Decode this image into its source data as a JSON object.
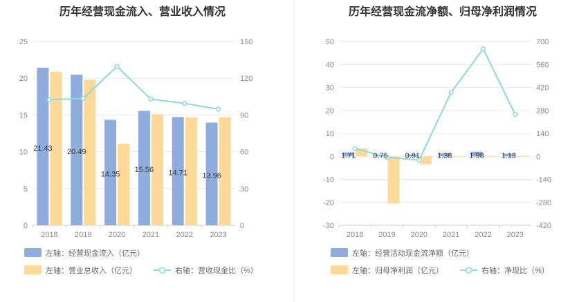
{
  "colors": {
    "left_bar": "#8eaddc",
    "right_bar": "#ffd998",
    "line": "#8dd8df",
    "grid": "#e8eaf0",
    "divider": "#eeeeee"
  },
  "chart_data": [
    {
      "type": "bar",
      "title": "历年经营现金流入、营业收入情况",
      "categories": [
        "2018",
        "2019",
        "2020",
        "2021",
        "2022",
        "2023"
      ],
      "y_left": {
        "min": 0,
        "max": 25,
        "ticks": [
          "0",
          "5",
          "10",
          "15",
          "20",
          "25"
        ]
      },
      "y_right": {
        "min": 0,
        "max": 150,
        "ticks": [
          "0",
          "30",
          "60",
          "90",
          "120",
          "150"
        ]
      },
      "series": [
        {
          "name": "左轴：经营现金流入（亿元）",
          "kind": "bar",
          "axis": "left",
          "values": [
            21.43,
            20.49,
            14.35,
            15.56,
            14.71,
            13.96
          ],
          "labels": [
            "21.43",
            "20.49",
            "14.35",
            "15.56",
            "14.71",
            "13.96"
          ]
        },
        {
          "name": "左轴：营业总收入（亿元）",
          "kind": "bar",
          "axis": "left",
          "values": [
            20.9,
            19.8,
            11.1,
            15.1,
            14.7,
            14.7
          ]
        },
        {
          "name": "右轴：营收现金比（%）",
          "kind": "line",
          "axis": "right",
          "values": [
            102.5,
            103.5,
            129.6,
            103.0,
            99.5,
            94.8
          ]
        }
      ],
      "legend_position": "bottom"
    },
    {
      "type": "bar",
      "title": "历年经营现金流净额、归母净利润情况",
      "categories": [
        "2018",
        "2019",
        "2020",
        "2021",
        "2022",
        "2023"
      ],
      "y_left": {
        "min": -30,
        "max": 50,
        "ticks": [
          "-30",
          "-20",
          "-10",
          "0",
          "10",
          "20",
          "30",
          "40",
          "50"
        ]
      },
      "y_right": {
        "min": -420,
        "max": 700,
        "ticks": [
          "-420",
          "-280",
          "-140",
          "0",
          "140",
          "280",
          "420",
          "560",
          "700"
        ]
      },
      "series": [
        {
          "name": "左轴：经营活动现金流净额（亿元）",
          "kind": "bar",
          "axis": "left",
          "values": [
            1.71,
            0.75,
            0.81,
            1.38,
            1.98,
            1.13
          ],
          "labels": [
            "1.71",
            "0.75",
            "0.81",
            "1.38",
            "1.98",
            "1.13"
          ]
        },
        {
          "name": "左轴：归母净利润（亿元）",
          "kind": "bar",
          "axis": "left",
          "values": [
            3.5,
            -20.5,
            -3.5,
            0.1,
            0.1,
            0.1
          ]
        },
        {
          "name": "右轴：净现比（%）",
          "kind": "line",
          "axis": "right",
          "values": [
            48,
            -5,
            -23,
            390,
            655,
            255
          ]
        }
      ],
      "legend_position": "bottom"
    }
  ]
}
